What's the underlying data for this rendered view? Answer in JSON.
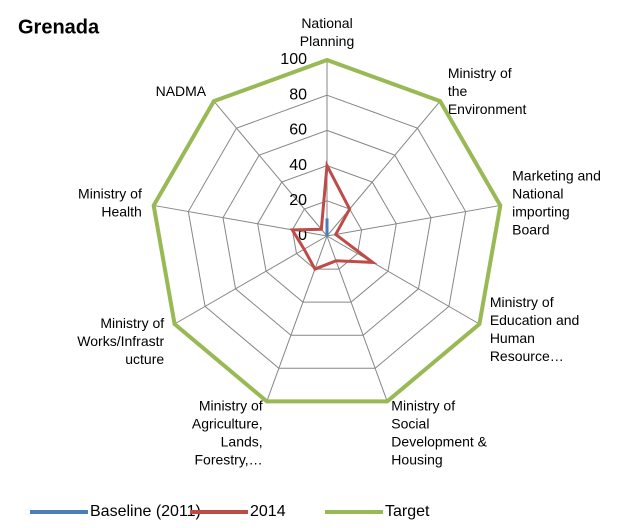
{
  "chart_data": {
    "type": "radar",
    "title": "Grenada",
    "categories": [
      "National Planning",
      "Ministry of the Environment",
      "Marketing and National importing Board",
      "Ministry of Education and Human Resource…",
      "Ministry of Social Development & Housing",
      "Ministry of Agriculture, Lands, Forestry,…",
      "Ministry of Works/Infrastructure",
      "Ministry of Health",
      "NADMA"
    ],
    "series": [
      {
        "name": "Baseline (2011)",
        "color": "#4a7ebb",
        "values": [
          10,
          0,
          0,
          0,
          0,
          0,
          0,
          0,
          0
        ]
      },
      {
        "name": "2014",
        "color": "#be4b48",
        "values": [
          40,
          20,
          5,
          30,
          15,
          20,
          15,
          20,
          5
        ]
      },
      {
        "name": "Target",
        "color": "#98b954",
        "values": [
          100,
          100,
          100,
          100,
          100,
          100,
          100,
          100,
          100
        ]
      }
    ],
    "ylim": [
      0,
      100
    ],
    "yticks": [
      0,
      20,
      40,
      60,
      80,
      100
    ],
    "grid": true,
    "legend": "bottom"
  }
}
